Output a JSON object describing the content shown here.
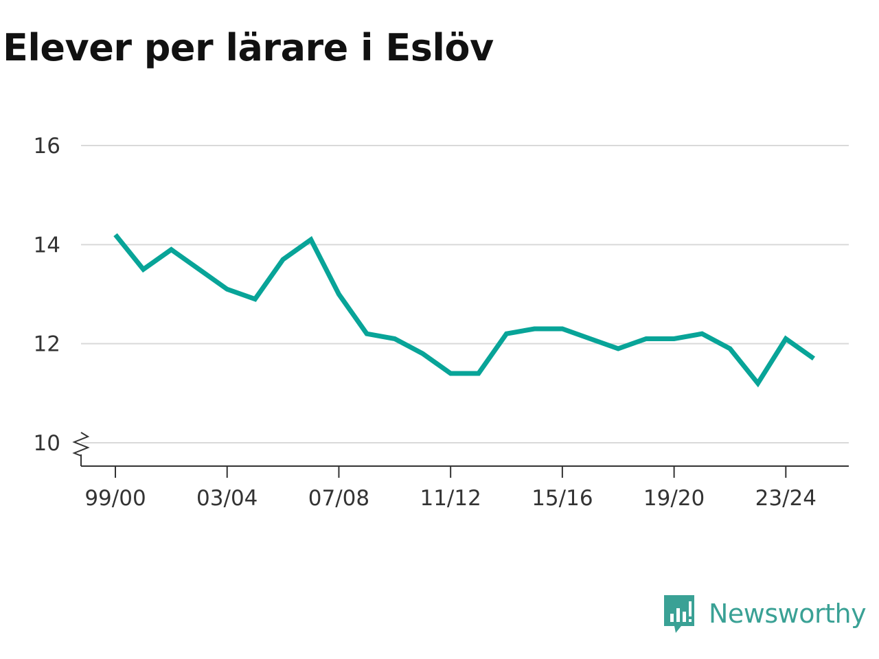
{
  "chart_data": {
    "type": "line",
    "title": "Elever per lärare i Eslöv",
    "xlabel": "",
    "ylabel": "",
    "categories": [
      "99/00",
      "00/01",
      "01/02",
      "02/03",
      "03/04",
      "04/05",
      "05/06",
      "06/07",
      "07/08",
      "08/09",
      "09/10",
      "10/11",
      "11/12",
      "12/13",
      "13/14",
      "14/15",
      "15/16",
      "16/17",
      "17/18",
      "18/19",
      "19/20",
      "20/21",
      "21/22",
      "22/23",
      "23/24",
      "24/25"
    ],
    "x_tick_labels": [
      "99/00",
      "03/04",
      "07/08",
      "11/12",
      "15/16",
      "19/20",
      "23/24"
    ],
    "series": [
      {
        "values": [
          14.2,
          13.5,
          13.9,
          13.5,
          13.1,
          12.9,
          13.7,
          14.1,
          13.0,
          12.2,
          12.1,
          11.8,
          11.4,
          11.4,
          12.2,
          12.3,
          12.3,
          12.1,
          11.9,
          12.1,
          12.1,
          12.2,
          11.9,
          11.2,
          12.1,
          11.7
        ],
        "color": "#08a498"
      }
    ],
    "ylim": [
      10,
      16
    ],
    "y_ticks": [
      "10",
      "12",
      "14",
      "16"
    ],
    "y_axis_break": true,
    "grid": true,
    "legend": "none"
  },
  "brand": {
    "name": "Newsworthy",
    "icon": "newsworthy-logo-icon",
    "color": "#3aa195"
  }
}
